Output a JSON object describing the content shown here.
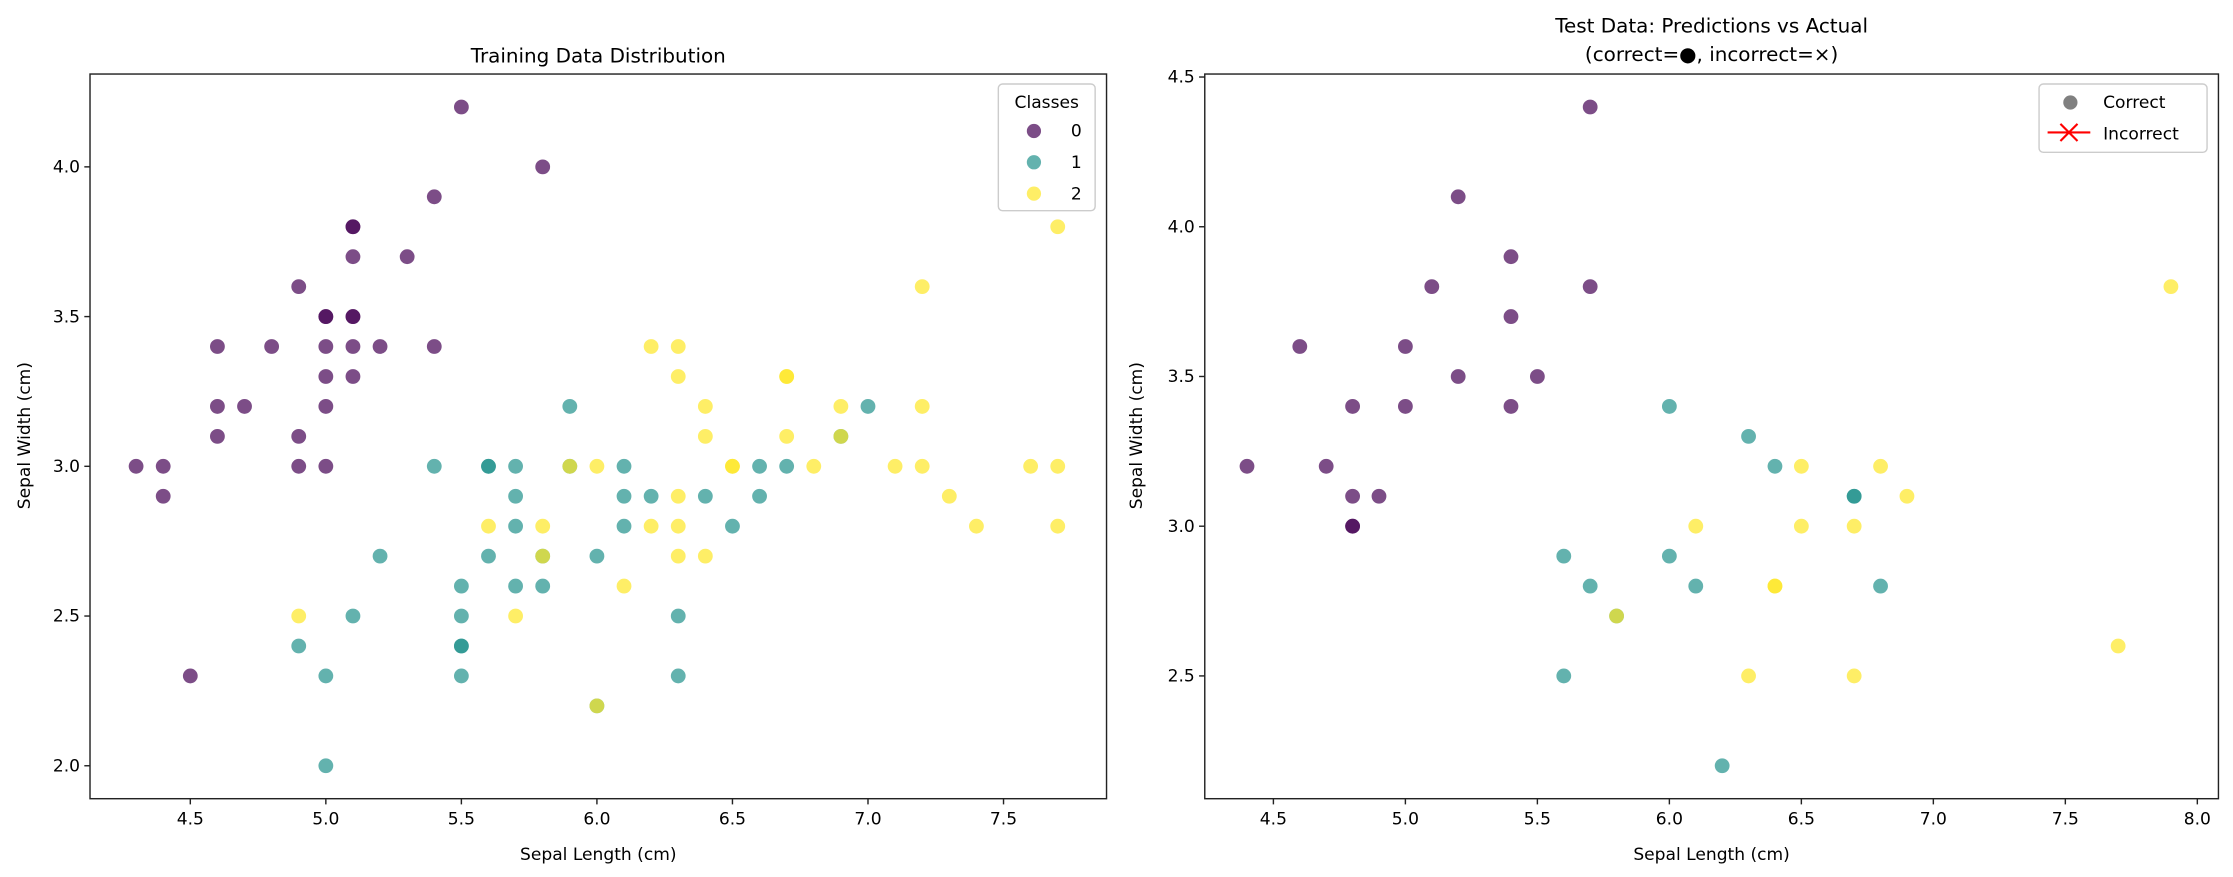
{
  "colors": {
    "0": "#440154",
    "1": "#21918c",
    "2": "#fde725",
    "correct": "#808080",
    "incorrect": "#ff0000"
  },
  "chart_data": [
    {
      "type": "scatter",
      "title": "Training Data Distribution",
      "xlabel": "Sepal Length (cm)",
      "ylabel": "Sepal Width (cm)",
      "xlim": [
        4.13,
        7.88
      ],
      "ylim": [
        1.89,
        4.31
      ],
      "xticks": [
        "4.5",
        "5.0",
        "5.5",
        "6.0",
        "6.5",
        "7.0",
        "7.5"
      ],
      "yticks": [
        "2.0",
        "2.5",
        "3.0",
        "3.5",
        "4.0"
      ],
      "grid": false,
      "legend": {
        "title": "Classes",
        "placement": "top-right",
        "entries": [
          "0",
          "1",
          "2"
        ]
      },
      "series": [
        {
          "name": "0",
          "points": [
            [
              5.5,
              4.2
            ],
            [
              5.8,
              4.0
            ],
            [
              5.4,
              3.9
            ],
            [
              5.1,
              3.8
            ],
            [
              5.1,
              3.8
            ],
            [
              5.1,
              3.7
            ],
            [
              5.3,
              3.7
            ],
            [
              4.9,
              3.6
            ],
            [
              5.0,
              3.5
            ],
            [
              5.0,
              3.5
            ],
            [
              5.1,
              3.5
            ],
            [
              5.1,
              3.5
            ],
            [
              4.6,
              3.4
            ],
            [
              4.8,
              3.4
            ],
            [
              5.0,
              3.4
            ],
            [
              5.1,
              3.4
            ],
            [
              5.2,
              3.4
            ],
            [
              5.4,
              3.4
            ],
            [
              5.0,
              3.3
            ],
            [
              5.1,
              3.3
            ],
            [
              4.6,
              3.2
            ],
            [
              4.7,
              3.2
            ],
            [
              5.0,
              3.2
            ],
            [
              4.6,
              3.1
            ],
            [
              4.9,
              3.1
            ],
            [
              4.3,
              3.0
            ],
            [
              4.4,
              3.0
            ],
            [
              4.9,
              3.0
            ],
            [
              5.0,
              3.0
            ],
            [
              4.4,
              2.9
            ],
            [
              4.5,
              2.3
            ]
          ]
        },
        {
          "name": "1",
          "points": [
            [
              5.9,
              3.2
            ],
            [
              7.0,
              3.2
            ],
            [
              6.9,
              3.1
            ],
            [
              5.4,
              3.0
            ],
            [
              5.6,
              3.0
            ],
            [
              5.6,
              3.0
            ],
            [
              5.7,
              3.0
            ],
            [
              5.9,
              3.0
            ],
            [
              6.1,
              3.0
            ],
            [
              6.6,
              3.0
            ],
            [
              6.7,
              3.0
            ],
            [
              5.7,
              2.9
            ],
            [
              6.1,
              2.9
            ],
            [
              6.2,
              2.9
            ],
            [
              6.4,
              2.9
            ],
            [
              6.6,
              2.9
            ],
            [
              5.7,
              2.8
            ],
            [
              6.1,
              2.8
            ],
            [
              6.5,
              2.8
            ],
            [
              5.2,
              2.7
            ],
            [
              5.6,
              2.7
            ],
            [
              5.8,
              2.7
            ],
            [
              6.0,
              2.7
            ],
            [
              5.5,
              2.6
            ],
            [
              5.7,
              2.6
            ],
            [
              5.8,
              2.6
            ],
            [
              5.1,
              2.5
            ],
            [
              5.5,
              2.5
            ],
            [
              6.3,
              2.5
            ],
            [
              4.9,
              2.4
            ],
            [
              5.5,
              2.4
            ],
            [
              5.5,
              2.4
            ],
            [
              5.0,
              2.3
            ],
            [
              5.5,
              2.3
            ],
            [
              6.3,
              2.3
            ],
            [
              6.0,
              2.2
            ],
            [
              5.0,
              2.0
            ]
          ]
        },
        {
          "name": "2",
          "points": [
            [
              7.7,
              3.8
            ],
            [
              7.2,
              3.6
            ],
            [
              6.2,
              3.4
            ],
            [
              6.3,
              3.4
            ],
            [
              6.3,
              3.3
            ],
            [
              6.7,
              3.3
            ],
            [
              6.7,
              3.3
            ],
            [
              6.4,
              3.2
            ],
            [
              6.9,
              3.2
            ],
            [
              7.2,
              3.2
            ],
            [
              6.4,
              3.1
            ],
            [
              6.7,
              3.1
            ],
            [
              6.9,
              3.1
            ],
            [
              5.9,
              3.0
            ],
            [
              6.0,
              3.0
            ],
            [
              6.5,
              3.0
            ],
            [
              6.5,
              3.0
            ],
            [
              6.8,
              3.0
            ],
            [
              7.1,
              3.0
            ],
            [
              7.2,
              3.0
            ],
            [
              7.6,
              3.0
            ],
            [
              7.7,
              3.0
            ],
            [
              6.3,
              2.9
            ],
            [
              7.3,
              2.9
            ],
            [
              5.6,
              2.8
            ],
            [
              5.8,
              2.8
            ],
            [
              6.2,
              2.8
            ],
            [
              6.3,
              2.8
            ],
            [
              7.4,
              2.8
            ],
            [
              7.7,
              2.8
            ],
            [
              5.8,
              2.7
            ],
            [
              6.3,
              2.7
            ],
            [
              6.4,
              2.7
            ],
            [
              6.1,
              2.6
            ],
            [
              4.9,
              2.5
            ],
            [
              5.7,
              2.5
            ],
            [
              6.0,
              2.2
            ]
          ]
        }
      ]
    },
    {
      "type": "scatter",
      "title": "Test Data: Predictions vs Actual",
      "subtitle": "(correct=●, incorrect=×)",
      "xlabel": "Sepal Length (cm)",
      "ylabel": "Sepal Width (cm)",
      "xlim": [
        4.24,
        8.08
      ],
      "ylim": [
        2.09,
        4.51
      ],
      "xticks": [
        "4.5",
        "5.0",
        "5.5",
        "6.0",
        "6.5",
        "7.0",
        "7.5",
        "8.0"
      ],
      "yticks": [
        "2.5",
        "3.0",
        "3.5",
        "4.0",
        "4.5"
      ],
      "grid": false,
      "legend": {
        "placement": "top-right",
        "entries": [
          "Correct",
          "Incorrect"
        ]
      },
      "series": [
        {
          "name": "0",
          "points": [
            [
              5.7,
              4.4
            ],
            [
              5.2,
              4.1
            ],
            [
              5.4,
              3.9
            ],
            [
              5.1,
              3.8
            ],
            [
              5.7,
              3.8
            ],
            [
              5.4,
              3.7
            ],
            [
              4.6,
              3.6
            ],
            [
              5.0,
              3.6
            ],
            [
              5.2,
              3.5
            ],
            [
              5.5,
              3.5
            ],
            [
              4.8,
              3.4
            ],
            [
              5.0,
              3.4
            ],
            [
              5.4,
              3.4
            ],
            [
              4.4,
              3.2
            ],
            [
              4.7,
              3.2
            ],
            [
              4.8,
              3.1
            ],
            [
              4.9,
              3.1
            ],
            [
              4.8,
              3.0
            ],
            [
              4.8,
              3.0
            ]
          ]
        },
        {
          "name": "1",
          "points": [
            [
              6.0,
              3.4
            ],
            [
              6.3,
              3.3
            ],
            [
              6.4,
              3.2
            ],
            [
              6.7,
              3.1
            ],
            [
              6.7,
              3.1
            ],
            [
              6.0,
              2.9
            ],
            [
              5.6,
              2.9
            ],
            [
              5.7,
              2.8
            ],
            [
              6.1,
              2.8
            ],
            [
              6.8,
              2.8
            ],
            [
              5.8,
              2.7
            ],
            [
              5.6,
              2.5
            ],
            [
              6.2,
              2.2
            ]
          ]
        },
        {
          "name": "2",
          "points": [
            [
              7.9,
              3.8
            ],
            [
              6.5,
              3.2
            ],
            [
              6.8,
              3.2
            ],
            [
              6.9,
              3.1
            ],
            [
              6.1,
              3.0
            ],
            [
              6.5,
              3.0
            ],
            [
              6.7,
              3.0
            ],
            [
              6.4,
              2.8
            ],
            [
              6.4,
              2.8
            ],
            [
              5.8,
              2.7
            ],
            [
              6.3,
              2.5
            ],
            [
              6.7,
              2.5
            ],
            [
              7.7,
              2.6
            ]
          ]
        }
      ]
    }
  ]
}
